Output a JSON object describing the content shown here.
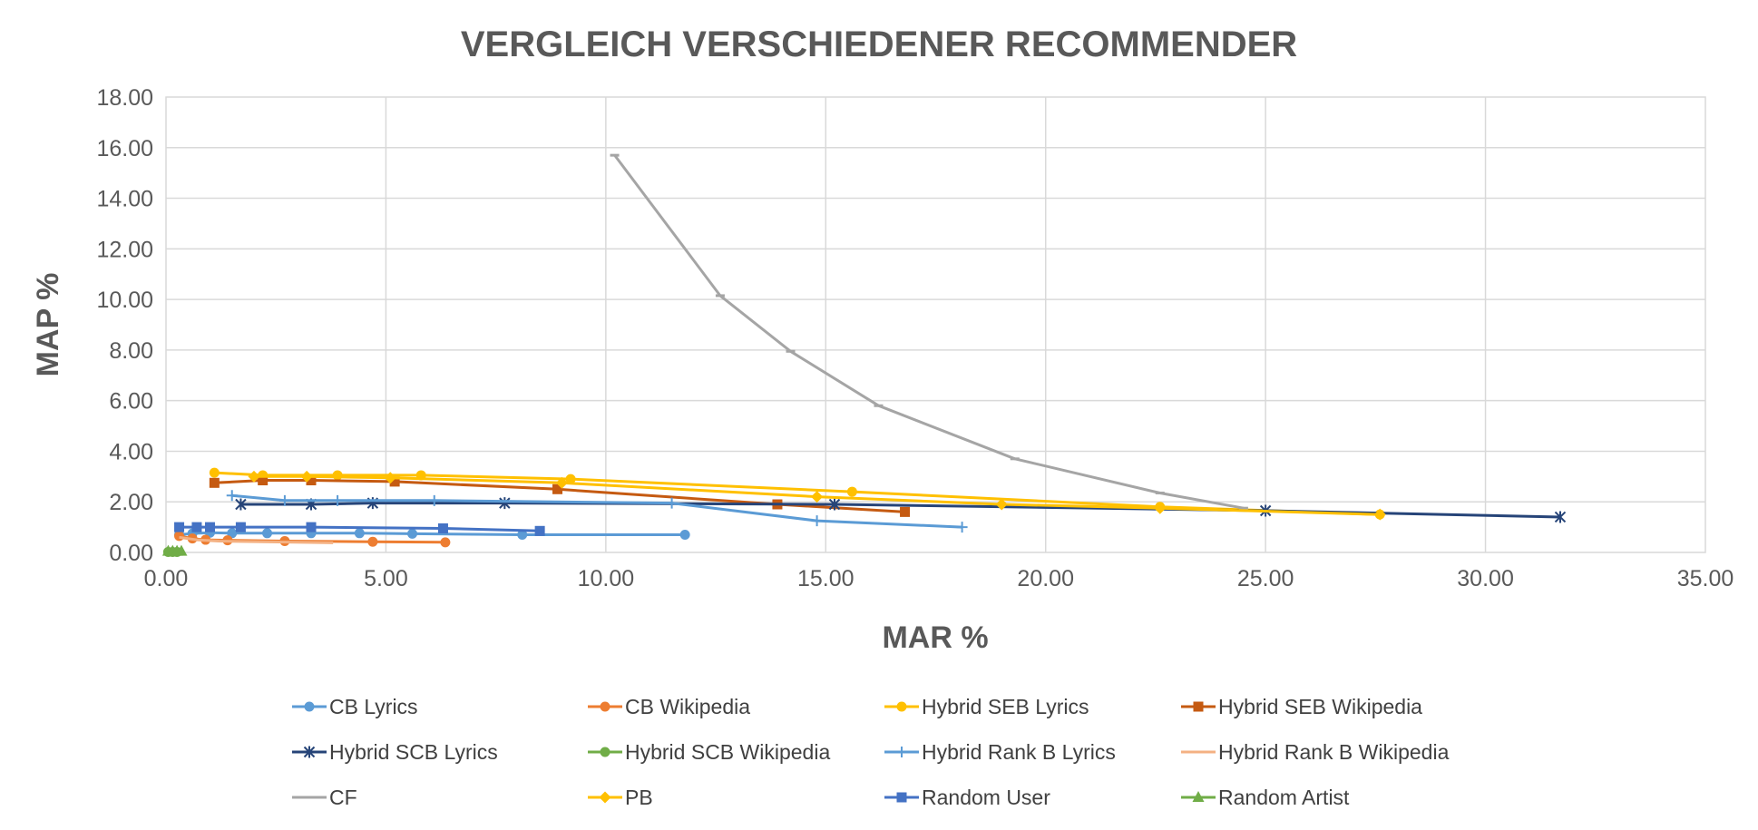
{
  "chart_data": {
    "type": "line",
    "title": "VERGLEICH VERSCHIEDENER RECOMMENDER",
    "xlabel": "MAR %",
    "ylabel": "MAP %",
    "xlim": [
      0,
      35
    ],
    "ylim": [
      0,
      18
    ],
    "x_ticks": [
      "0.00",
      "5.00",
      "10.00",
      "15.00",
      "20.00",
      "25.00",
      "30.00",
      "35.00"
    ],
    "y_ticks": [
      "0.00",
      "2.00",
      "4.00",
      "6.00",
      "8.00",
      "10.00",
      "12.00",
      "14.00",
      "16.00",
      "18.00"
    ],
    "grid": true,
    "legend_position": "bottom",
    "series": [
      {
        "name": "CB Lyrics",
        "color": "#5B9BD5",
        "marker": "circle",
        "points": [
          [
            0.3,
            0.7
          ],
          [
            0.6,
            0.75
          ],
          [
            1.0,
            0.78
          ],
          [
            1.5,
            0.76
          ],
          [
            2.3,
            0.76
          ],
          [
            3.3,
            0.76
          ],
          [
            4.4,
            0.76
          ],
          [
            5.6,
            0.74
          ],
          [
            8.1,
            0.7
          ],
          [
            11.8,
            0.7
          ]
        ]
      },
      {
        "name": "CB Wikipedia",
        "color": "#ED7D31",
        "marker": "circle",
        "points": [
          [
            0.3,
            0.65
          ],
          [
            0.6,
            0.55
          ],
          [
            0.9,
            0.5
          ],
          [
            1.4,
            0.48
          ],
          [
            2.7,
            0.45
          ],
          [
            4.7,
            0.42
          ],
          [
            6.35,
            0.4
          ]
        ]
      },
      {
        "name": "Hybrid SEB Lyrics",
        "color": "#FFC000",
        "marker": "circle",
        "points": [
          [
            1.1,
            3.15
          ],
          [
            2.2,
            3.05
          ],
          [
            3.9,
            3.05
          ],
          [
            5.8,
            3.05
          ],
          [
            9.2,
            2.9
          ],
          [
            15.6,
            2.4
          ],
          [
            22.6,
            1.8
          ],
          [
            27.6,
            1.5
          ]
        ]
      },
      {
        "name": "Hybrid SEB Wikipedia",
        "color": "#C55A11",
        "marker": "square",
        "points": [
          [
            1.1,
            2.75
          ],
          [
            2.2,
            2.85
          ],
          [
            3.3,
            2.85
          ],
          [
            5.2,
            2.8
          ],
          [
            8.9,
            2.5
          ],
          [
            13.9,
            1.9
          ],
          [
            16.8,
            1.6
          ]
        ]
      },
      {
        "name": "Hybrid SCB Lyrics",
        "color": "#264478",
        "marker": "star",
        "points": [
          [
            1.7,
            1.9
          ],
          [
            3.3,
            1.9
          ],
          [
            4.7,
            1.95
          ],
          [
            7.7,
            1.95
          ],
          [
            15.2,
            1.9
          ],
          [
            25.0,
            1.65
          ],
          [
            31.7,
            1.4
          ]
        ]
      },
      {
        "name": "Hybrid SCB Wikipedia",
        "color": "#70AD47",
        "marker": "circle",
        "points": [
          [
            0.05,
            0.02
          ],
          [
            0.15,
            0.02
          ],
          [
            0.25,
            0.02
          ]
        ]
      },
      {
        "name": "Hybrid Rank B Lyrics",
        "color": "#5B9BD5",
        "marker": "plus",
        "points": [
          [
            1.5,
            2.25
          ],
          [
            2.7,
            2.05
          ],
          [
            3.9,
            2.05
          ],
          [
            6.1,
            2.05
          ],
          [
            11.5,
            1.95
          ],
          [
            14.8,
            1.25
          ],
          [
            18.1,
            1.0
          ]
        ]
      },
      {
        "name": "Hybrid Rank B Wikipedia",
        "color": "#F4B183",
        "marker": "none",
        "points": [
          [
            0.3,
            0.6
          ],
          [
            0.7,
            0.5
          ],
          [
            1.2,
            0.45
          ],
          [
            2.2,
            0.42
          ],
          [
            3.8,
            0.38
          ]
        ]
      },
      {
        "name": "CF",
        "color": "#A5A5A5",
        "marker": "dash",
        "points": [
          [
            10.2,
            15.7
          ],
          [
            12.6,
            10.15
          ],
          [
            14.2,
            7.95
          ],
          [
            16.2,
            5.8
          ],
          [
            19.3,
            3.7
          ],
          [
            22.6,
            2.35
          ],
          [
            24.5,
            1.75
          ]
        ]
      },
      {
        "name": "PB",
        "color": "#FFC000",
        "marker": "diamond",
        "points": [
          [
            2.0,
            3.0
          ],
          [
            3.2,
            3.0
          ],
          [
            5.1,
            2.95
          ],
          [
            9.0,
            2.75
          ],
          [
            14.8,
            2.2
          ],
          [
            19.0,
            1.9
          ],
          [
            22.6,
            1.75
          ],
          [
            27.6,
            1.5
          ]
        ]
      },
      {
        "name": "Random User",
        "color": "#4472C4",
        "marker": "square",
        "points": [
          [
            0.3,
            1.0
          ],
          [
            0.7,
            1.0
          ],
          [
            1.0,
            1.0
          ],
          [
            1.7,
            1.0
          ],
          [
            3.3,
            1.0
          ],
          [
            6.3,
            0.95
          ],
          [
            8.5,
            0.85
          ]
        ]
      },
      {
        "name": "Random Artist",
        "color": "#70AD47",
        "marker": "triangle",
        "points": [
          [
            0.05,
            0.05
          ],
          [
            0.15,
            0.05
          ],
          [
            0.25,
            0.05
          ],
          [
            0.35,
            0.05
          ]
        ]
      }
    ]
  }
}
